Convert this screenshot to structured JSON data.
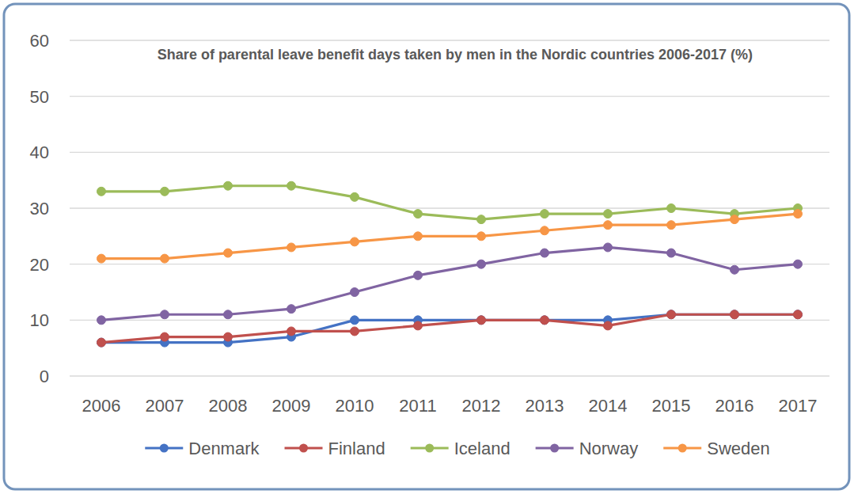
{
  "chart_data": {
    "type": "line",
    "title": "Share of parental leave benefit days taken by men in the Nordic countries 2006-2017 (%)",
    "categories": [
      "2006",
      "2007",
      "2008",
      "2009",
      "2010",
      "2011",
      "2012",
      "2013",
      "2014",
      "2015",
      "2016",
      "2017"
    ],
    "series": [
      {
        "name": "Denmark",
        "color": "#4472c4",
        "marker": "circle",
        "values": [
          6,
          6,
          6,
          7,
          10,
          10,
          10,
          10,
          10,
          11,
          11,
          11
        ]
      },
      {
        "name": "Finland",
        "color": "#c0504d",
        "marker": "circle",
        "values": [
          6,
          7,
          7,
          8,
          8,
          9,
          10,
          10,
          9,
          11,
          11,
          11
        ]
      },
      {
        "name": "Iceland",
        "color": "#9bbb59",
        "marker": "circle",
        "values": [
          33,
          33,
          34,
          34,
          32,
          29,
          28,
          29,
          29,
          30,
          29,
          30
        ]
      },
      {
        "name": "Norway",
        "color": "#8064a2",
        "marker": "circle",
        "values": [
          10,
          11,
          11,
          12,
          15,
          18,
          20,
          22,
          23,
          22,
          19,
          20
        ]
      },
      {
        "name": "Sweden",
        "color": "#f79646",
        "marker": "circle",
        "values": [
          21,
          21,
          22,
          23,
          24,
          25,
          25,
          26,
          27,
          27,
          28,
          29
        ]
      }
    ],
    "ylim": [
      0,
      60
    ],
    "yticks": [
      0,
      10,
      20,
      30,
      40,
      50,
      60
    ],
    "grid": true,
    "legend": "bottom"
  }
}
